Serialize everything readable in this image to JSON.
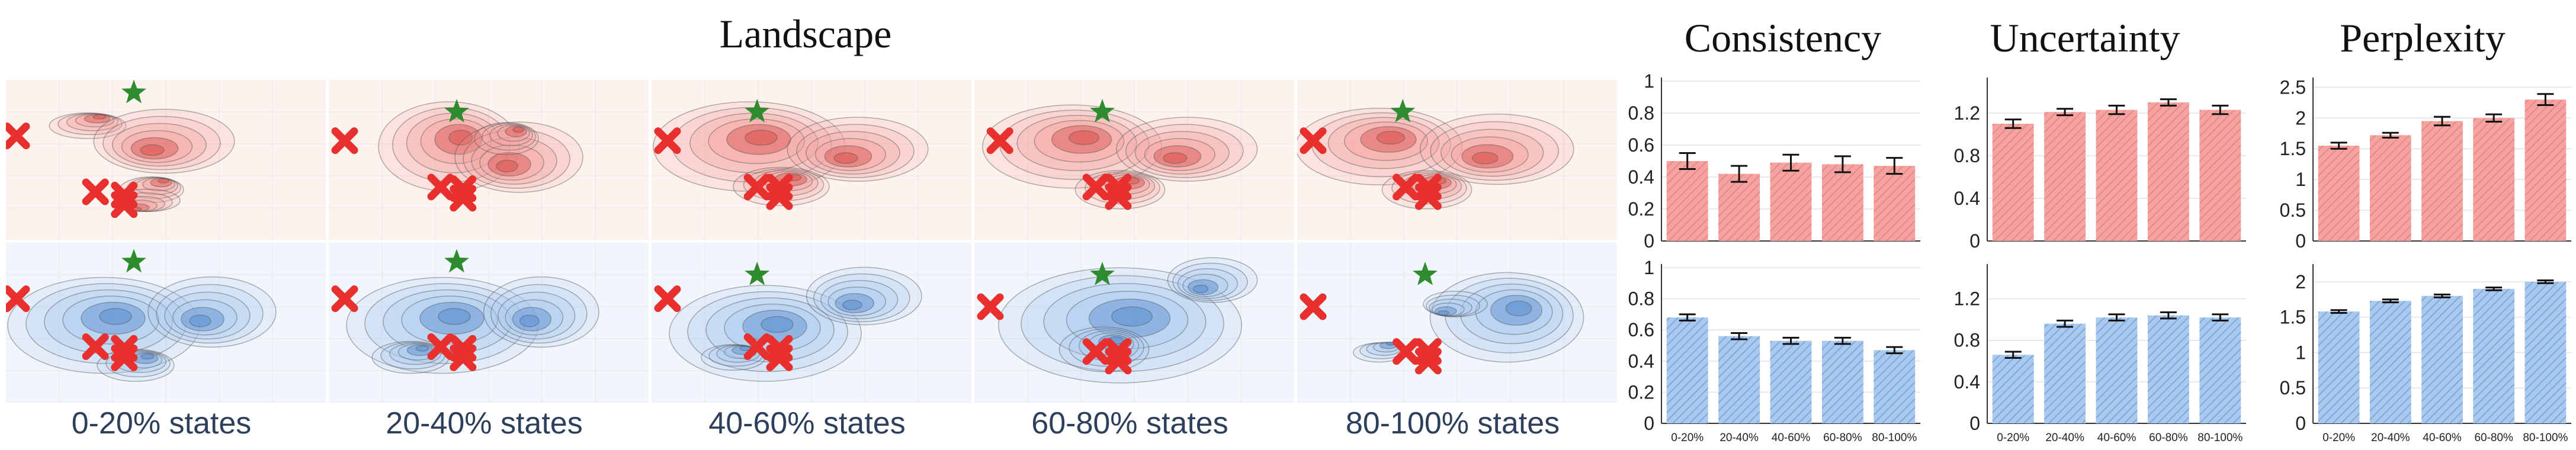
{
  "titles": {
    "landscape": "Landscape",
    "consistency": "Consistency",
    "uncertainty": "Uncertainty",
    "perplexity": "Perplexity"
  },
  "state_labels": [
    "0-20% states",
    "20-40% states",
    "40-60% states",
    "60-80% states",
    "80-100% states"
  ],
  "colors": {
    "red_fill": "#f4a3a0",
    "red_dark": "#d9534f",
    "red_bg": "#fdf3ee",
    "blue_fill": "#a9c9ee",
    "blue_dark": "#5b8ed1",
    "blue_bg": "#f1f6fc",
    "star": "#2e8b2e",
    "cross": "#e8302f",
    "label": "#2e3f5c"
  },
  "icons": {
    "star": "star-icon",
    "cross": "cross-icon"
  },
  "chart_data": [
    {
      "type": "bar",
      "title": "Consistency",
      "row": "top",
      "color": "red",
      "categories": [
        "0-20%",
        "20-40%",
        "40-60%",
        "60-80%",
        "80-100%"
      ],
      "values": [
        0.5,
        0.42,
        0.49,
        0.48,
        0.47
      ],
      "errors": [
        0.05,
        0.05,
        0.05,
        0.05,
        0.05
      ],
      "ylim": [
        0,
        1
      ],
      "yticks": [
        0,
        0.2,
        0.4,
        0.6,
        0.8,
        1
      ],
      "ytick_labels": [
        "0",
        "0.2",
        "0.4",
        "0.6",
        "0.8",
        "1"
      ]
    },
    {
      "type": "bar",
      "title": "Consistency",
      "row": "bottom",
      "color": "blue",
      "categories": [
        "0-20%",
        "20-40%",
        "40-60%",
        "60-80%",
        "80-100%"
      ],
      "values": [
        0.68,
        0.56,
        0.53,
        0.53,
        0.47
      ],
      "errors": [
        0.02,
        0.02,
        0.02,
        0.02,
        0.02
      ],
      "ylim": [
        0,
        1
      ],
      "yticks": [
        0,
        0.2,
        0.4,
        0.6,
        0.8,
        1
      ],
      "ytick_labels": [
        "0",
        "0.2",
        "0.4",
        "0.6",
        "0.8",
        "1"
      ]
    },
    {
      "type": "bar",
      "title": "Uncertainty",
      "row": "top",
      "color": "red",
      "categories": [
        "0-20%",
        "20-40%",
        "40-60%",
        "60-80%",
        "80-100%"
      ],
      "values": [
        1.1,
        1.21,
        1.23,
        1.3,
        1.23
      ],
      "errors": [
        0.04,
        0.03,
        0.04,
        0.03,
        0.04
      ],
      "ylim": [
        0,
        1.5
      ],
      "yticks": [
        0,
        0.4,
        0.8,
        1.2
      ],
      "ytick_labels": [
        "0",
        "0.4",
        "0.8",
        "1.2"
      ]
    },
    {
      "type": "bar",
      "title": "Uncertainty",
      "row": "bottom",
      "color": "blue",
      "categories": [
        "0-20%",
        "20-40%",
        "40-60%",
        "60-80%",
        "80-100%"
      ],
      "values": [
        0.66,
        0.96,
        1.02,
        1.04,
        1.02
      ],
      "errors": [
        0.03,
        0.03,
        0.03,
        0.03,
        0.03
      ],
      "ylim": [
        0,
        1.5
      ],
      "yticks": [
        0,
        0.4,
        0.8,
        1.2
      ],
      "ytick_labels": [
        "0",
        "0.4",
        "0.8",
        "1.2"
      ]
    },
    {
      "type": "bar",
      "title": "Perplexity",
      "row": "top",
      "color": "red",
      "categories": [
        "0-20%",
        "20-40%",
        "40-60%",
        "60-80%",
        "80-100%"
      ],
      "values": [
        1.55,
        1.72,
        1.95,
        2.0,
        2.3
      ],
      "errors": [
        0.05,
        0.04,
        0.07,
        0.06,
        0.09
      ],
      "ylim": [
        0,
        2.6
      ],
      "yticks": [
        0,
        0.5,
        1,
        1.5,
        2,
        2.5
      ],
      "ytick_labels": [
        "0",
        "0.5",
        "1",
        "1.5",
        "2",
        "2.5"
      ]
    },
    {
      "type": "bar",
      "title": "Perplexity",
      "row": "bottom",
      "color": "blue",
      "categories": [
        "0-20%",
        "20-40%",
        "40-60%",
        "60-80%",
        "80-100%"
      ],
      "values": [
        1.58,
        1.73,
        1.8,
        1.9,
        2.0
      ],
      "errors": [
        0.02,
        0.02,
        0.02,
        0.02,
        0.02
      ],
      "ylim": [
        0,
        2.2
      ],
      "yticks": [
        0,
        0.5,
        1,
        1.5,
        2
      ],
      "ytick_labels": [
        "0",
        "0.5",
        "1",
        "1.5",
        "2"
      ]
    }
  ]
}
